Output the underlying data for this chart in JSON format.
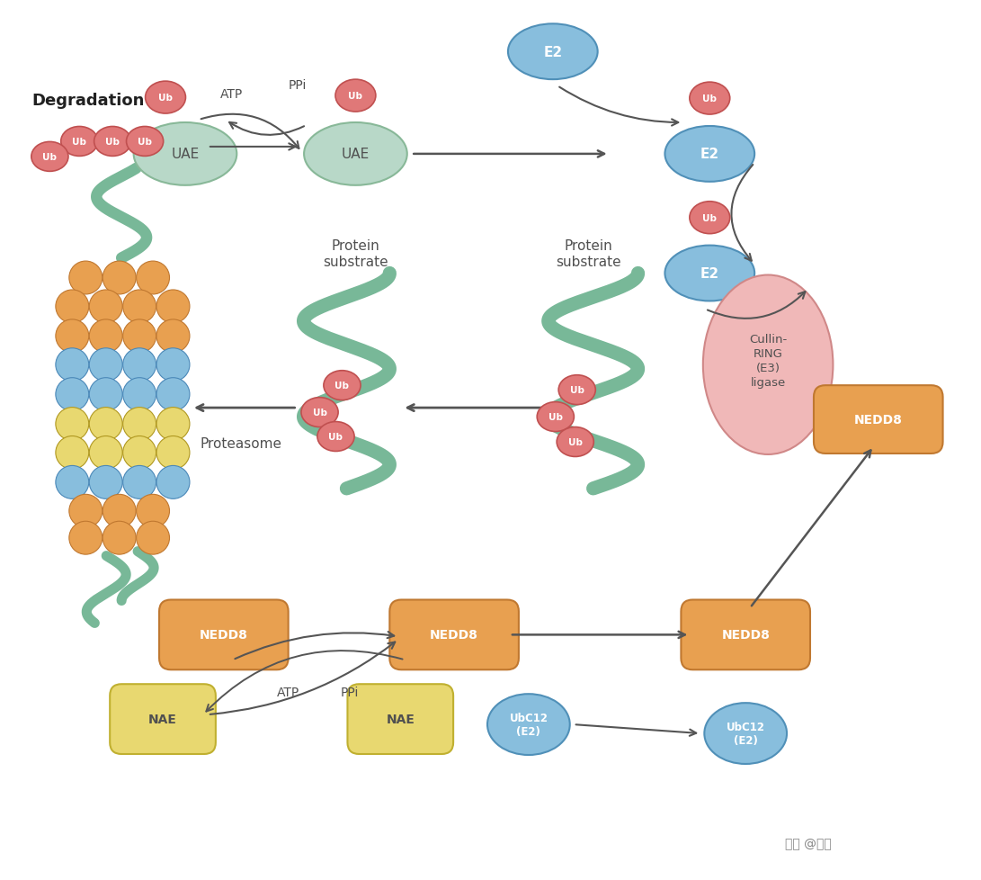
{
  "bg_color": "#ffffff",
  "colors": {
    "ub": "#e07878",
    "ub_stroke": "#c05050",
    "uae_fill": "#b8d8c8",
    "uae_stroke": "#88b898",
    "e2_fill": "#88bedd",
    "e2_stroke": "#5090b8",
    "cullin_fill": "#f0b8b8",
    "cullin_stroke": "#d08888",
    "nedd8_fill": "#e8a050",
    "nedd8_stroke": "#c07830",
    "nae_fill": "#e8d870",
    "nae_stroke": "#c0b030",
    "ubc12_fill": "#88bedd",
    "ubc12_stroke": "#5090b8",
    "proteasome_orange": "#e8a050",
    "proteasome_blue": "#88bedd",
    "proteasome_yellow": "#e8d870",
    "protein_tube": "#78b898",
    "protein_tube_stroke": "#5a9878",
    "text_dark": "#505050",
    "text_bold": "#202020",
    "arrow": "#555555"
  },
  "labels": {
    "uae": "UAE",
    "e2": "E2",
    "ub": "Ub",
    "atp": "ATP",
    "ppi": "PPi",
    "degradation": "Degradation",
    "protein_substrate": "Protein\nsubstrate",
    "proteasome": "Proteasome",
    "cullin_ring": "Cullin-\nRING\n(E3)\nligase",
    "nedd8": "NEDD8",
    "nae": "NAE",
    "ubc12": "UbC12\n(E2)",
    "zhihu": "知乎 @仳悧"
  }
}
